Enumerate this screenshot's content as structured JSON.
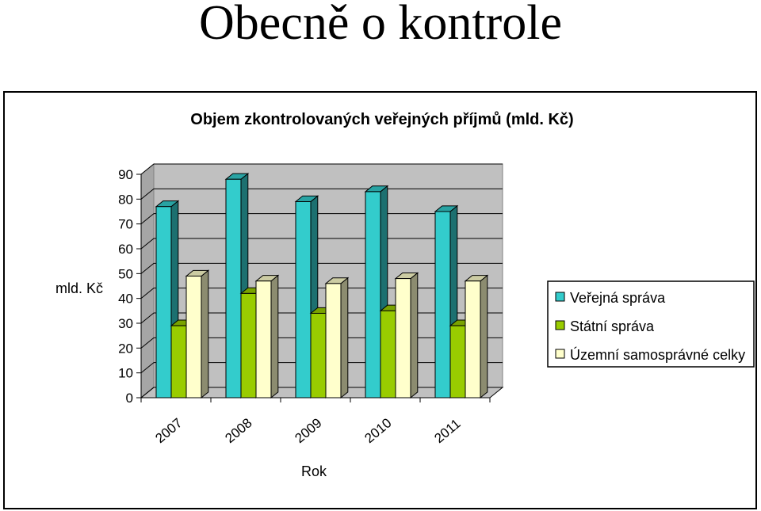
{
  "slide": {
    "title": "Obecně o kontrole"
  },
  "chart_data": {
    "type": "bar",
    "title": "Objem zkontrolovaných veřejných příjmů (mld. Kč)",
    "xlabel": "Rok",
    "ylabel": "mld. Kč",
    "categories": [
      "2007",
      "2008",
      "2009",
      "2010",
      "2011"
    ],
    "series": [
      {
        "name": "Veřejná správa",
        "values": [
          77,
          88,
          79,
          83,
          75
        ],
        "color": "#33CCCC"
      },
      {
        "name": "Státní správa",
        "values": [
          29,
          42,
          34,
          35,
          29
        ],
        "color": "#99CC00"
      },
      {
        "name": "Územní samosprávné celky",
        "values": [
          49,
          47,
          46,
          48,
          47
        ],
        "color": "#FFFFCC"
      }
    ],
    "ylim": [
      0,
      90
    ],
    "yticks": [
      0,
      10,
      20,
      30,
      40,
      50,
      60,
      70,
      80,
      90
    ],
    "grid": true,
    "legend": "right",
    "style": "3d-column"
  }
}
